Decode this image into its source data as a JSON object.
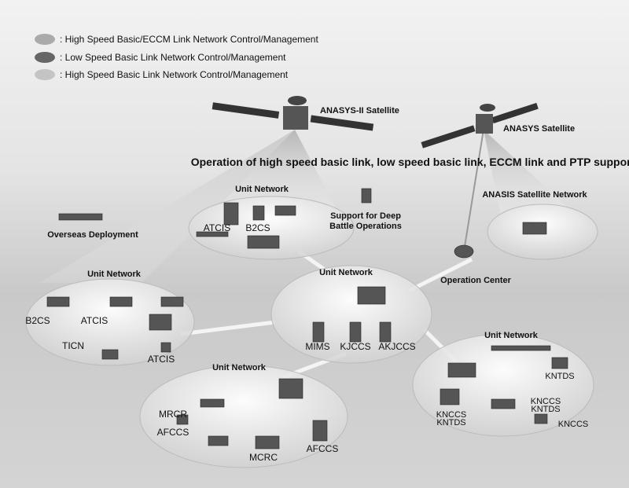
{
  "legend": [
    {
      "label": ": High Speed Basic/ECCM Link Network Control/Management"
    },
    {
      "label": ": Low Speed Basic Link Network Control/Management"
    },
    {
      "label": ": High Speed Basic Link Network Control/Management"
    }
  ],
  "satellites": [
    {
      "label": "ANASYS-II Satellite"
    },
    {
      "label": "ANASYS Satellite"
    }
  ],
  "headline": "Operation of high speed basic link, low speed basic link, ECCM link and PTP support",
  "annotations": {
    "deep_battle": [
      "Support for Deep",
      "Battle Operations"
    ],
    "anasis_network": "ANASIS Satellite Network",
    "overseas": "Overseas Deployment",
    "operation_center": "Operation Center"
  },
  "networks": [
    {
      "title": "Unit Network",
      "labels": [
        "ATCIS",
        "B2CS"
      ]
    },
    {
      "title": "Unit Network",
      "labels": [
        "B2CS",
        "ATCIS",
        "TICN",
        "ATCIS"
      ]
    },
    {
      "title": "Unit Network",
      "labels": [
        "MIMS",
        "KJCCS",
        "AKJCCS"
      ]
    },
    {
      "title": "Unit Network",
      "labels": [
        "MRCR",
        "AFCCS",
        "MCRC",
        "AFCCS"
      ]
    },
    {
      "title": "Unit Network",
      "labels": [
        "KNTDS",
        [
          "KNCCS",
          "KNTDS"
        ],
        [
          "KNCCS",
          "KNTDS"
        ],
        "KNCCS"
      ]
    }
  ]
}
